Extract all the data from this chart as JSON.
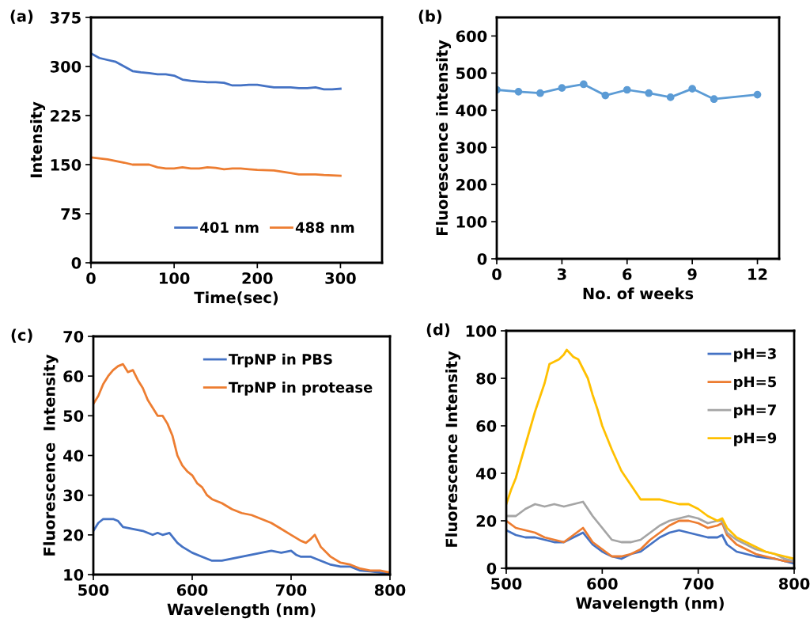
{
  "chart_data": [
    {
      "type": "line",
      "title": "(a)",
      "xlabel": "Time(sec)",
      "ylabel": "Intensity",
      "xlim": [
        0,
        350
      ],
      "xticks": [
        0,
        100,
        200,
        300
      ],
      "ylim": [
        0,
        375
      ],
      "yticks": [
        0,
        75,
        150,
        225,
        300,
        375
      ],
      "grid": false,
      "legend": "bottom right",
      "marker": "none",
      "series": [
        {
          "name": "401 nm",
          "color": "#4472c4",
          "x": [
            0,
            10,
            20,
            30,
            40,
            50,
            60,
            70,
            80,
            90,
            100,
            110,
            120,
            130,
            140,
            150,
            160,
            170,
            180,
            190,
            200,
            210,
            220,
            230,
            240,
            250,
            260,
            270,
            280,
            290,
            300
          ],
          "values": [
            320,
            313,
            310,
            307,
            300,
            293,
            291,
            290,
            288,
            288,
            286,
            280,
            278,
            277,
            276,
            276,
            275,
            271,
            271,
            272,
            272,
            270,
            268,
            268,
            268,
            267,
            267,
            268,
            265,
            265,
            266
          ]
        },
        {
          "name": "488 nm",
          "color": "#ed7d31",
          "x": [
            0,
            20,
            40,
            50,
            60,
            70,
            80,
            90,
            100,
            110,
            120,
            130,
            140,
            150,
            160,
            170,
            180,
            190,
            200,
            220,
            240,
            250,
            260,
            270,
            280,
            300
          ],
          "values": [
            161,
            158,
            153,
            150,
            150,
            150,
            146,
            144,
            144,
            146,
            144,
            144,
            146,
            145,
            143,
            144,
            144,
            143,
            142,
            141,
            137,
            135,
            135,
            135,
            134,
            133
          ]
        }
      ]
    },
    {
      "type": "line",
      "title": "(b)",
      "xlabel": "No. of weeks",
      "ylabel": "Fluorescence intensity",
      "xlim": [
        0,
        13
      ],
      "xticks": [
        0,
        3,
        6,
        9,
        12
      ],
      "ylim": [
        0,
        650
      ],
      "yticks": [
        0,
        100,
        200,
        300,
        400,
        500,
        600
      ],
      "grid": false,
      "marker": "circle",
      "series": [
        {
          "color": "#5b9bd5",
          "x": [
            0,
            1,
            2,
            3,
            4,
            5,
            6,
            7,
            8,
            9,
            10,
            12
          ],
          "values": [
            455,
            450,
            446,
            460,
            470,
            440,
            455,
            446,
            435,
            458,
            430,
            442
          ]
        }
      ]
    },
    {
      "type": "line",
      "title": "(c)",
      "xlabel": "Wavelength (nm)",
      "ylabel": "Fluorescence  Intensity",
      "xlim": [
        500,
        800
      ],
      "xticks": [
        500,
        600,
        700,
        800
      ],
      "ylim": [
        10,
        70
      ],
      "yticks": [
        10,
        20,
        30,
        40,
        50,
        60,
        70
      ],
      "grid": false,
      "legend": "top right",
      "marker": "none",
      "series": [
        {
          "name": "TrpNP in PBS",
          "color": "#4472c4",
          "x": [
            500,
            505,
            510,
            520,
            525,
            530,
            540,
            550,
            560,
            565,
            570,
            577,
            585,
            590,
            600,
            610,
            620,
            630,
            640,
            650,
            660,
            670,
            680,
            690,
            700,
            705,
            710,
            720,
            730,
            740,
            750,
            760,
            770,
            780,
            790,
            800
          ],
          "values": [
            21,
            23,
            24,
            24,
            23.5,
            22,
            21.5,
            21,
            20,
            20.5,
            20,
            20.5,
            18,
            17,
            15.5,
            14.5,
            13.5,
            13.5,
            14,
            14.5,
            15,
            15.5,
            16,
            15.5,
            16,
            15,
            14.5,
            14.5,
            13.5,
            12.5,
            12,
            12,
            11,
            10.8,
            10.5,
            10.3
          ]
        },
        {
          "name": "TrpNP in protease",
          "color": "#ed7d31",
          "x": [
            500,
            505,
            510,
            515,
            520,
            525,
            530,
            535,
            540,
            545,
            550,
            555,
            560,
            565,
            570,
            575,
            580,
            585,
            590,
            595,
            600,
            605,
            610,
            615,
            620,
            630,
            640,
            650,
            660,
            670,
            680,
            690,
            700,
            710,
            715,
            720,
            724,
            730,
            740,
            750,
            760,
            770,
            780,
            790,
            800
          ],
          "values": [
            53,
            55,
            58,
            60,
            61.5,
            62.5,
            63,
            61,
            61.5,
            59,
            57,
            54,
            52,
            50,
            50,
            48,
            45,
            40,
            37.5,
            36,
            35,
            33,
            32,
            30,
            29,
            28,
            26.5,
            25.5,
            25,
            24,
            23,
            21.5,
            20,
            18.5,
            18,
            19,
            20,
            17,
            14.5,
            13,
            12.5,
            11.5,
            11,
            11,
            10.5
          ]
        }
      ]
    },
    {
      "type": "line",
      "title": "(d)",
      "xlabel": "Wavelength (nm)",
      "ylabel": "Fluorescence Intensity",
      "xlim": [
        500,
        800
      ],
      "xticks": [
        500,
        600,
        700,
        800
      ],
      "ylim": [
        0,
        100
      ],
      "yticks": [
        0,
        20,
        40,
        60,
        80,
        100
      ],
      "grid": false,
      "legend": "top right",
      "marker": "none",
      "series": [
        {
          "name": "pH=3",
          "color": "#4472c4",
          "x": [
            500,
            510,
            520,
            530,
            540,
            550,
            560,
            570,
            580,
            590,
            600,
            610,
            620,
            630,
            640,
            650,
            660,
            670,
            680,
            690,
            700,
            710,
            720,
            725,
            730,
            740,
            750,
            760,
            770,
            780,
            790,
            800
          ],
          "values": [
            16,
            14,
            13,
            13,
            12,
            11,
            11,
            13,
            15,
            10,
            7,
            5,
            4,
            6,
            7,
            10,
            13,
            15,
            16,
            15,
            14,
            13,
            13,
            14,
            10,
            7,
            6,
            5,
            4.5,
            4,
            3,
            2
          ]
        },
        {
          "name": "pH=5",
          "color": "#ed7d31",
          "x": [
            500,
            510,
            520,
            530,
            540,
            550,
            560,
            570,
            580,
            590,
            600,
            610,
            620,
            630,
            640,
            650,
            660,
            670,
            680,
            690,
            700,
            710,
            720,
            725,
            730,
            740,
            750,
            760,
            770,
            780,
            790,
            800
          ],
          "values": [
            20,
            17,
            16,
            15,
            13,
            12,
            11,
            14,
            17,
            11,
            8,
            5,
            5,
            6,
            8,
            12,
            15,
            18,
            20,
            20,
            19,
            17,
            18,
            19,
            14,
            10,
            8,
            6,
            5,
            4,
            3,
            3
          ]
        },
        {
          "name": "pH=7",
          "color": "#a5a5a5",
          "x": [
            500,
            510,
            520,
            530,
            540,
            550,
            560,
            570,
            580,
            590,
            600,
            610,
            620,
            630,
            640,
            650,
            660,
            670,
            680,
            690,
            700,
            710,
            720,
            725,
            730,
            740,
            750,
            760,
            770,
            780,
            790,
            800
          ],
          "values": [
            22,
            22,
            25,
            27,
            26,
            27,
            26,
            27,
            28,
            22,
            17,
            12,
            11,
            11,
            12,
            15,
            18,
            20,
            21,
            22,
            21,
            19,
            20,
            20,
            15,
            12,
            10,
            8,
            7,
            6,
            4,
            3
          ]
        },
        {
          "name": "pH=9",
          "color": "#ffc000",
          "x": [
            500,
            505,
            510,
            520,
            530,
            540,
            545,
            550,
            555,
            560,
            563,
            570,
            575,
            580,
            585,
            590,
            595,
            600,
            610,
            620,
            630,
            640,
            650,
            660,
            670,
            680,
            690,
            700,
            710,
            720,
            725,
            730,
            740,
            750,
            760,
            770,
            780,
            790,
            800
          ],
          "values": [
            27,
            33,
            38,
            52,
            66,
            78,
            86,
            87,
            88,
            90,
            92,
            89,
            88,
            84,
            80,
            73,
            67,
            60,
            50,
            41,
            35,
            29,
            29,
            29,
            28,
            27,
            27,
            25,
            22,
            20,
            21,
            17,
            13,
            11,
            9,
            7,
            6,
            5,
            4
          ]
        }
      ]
    }
  ]
}
